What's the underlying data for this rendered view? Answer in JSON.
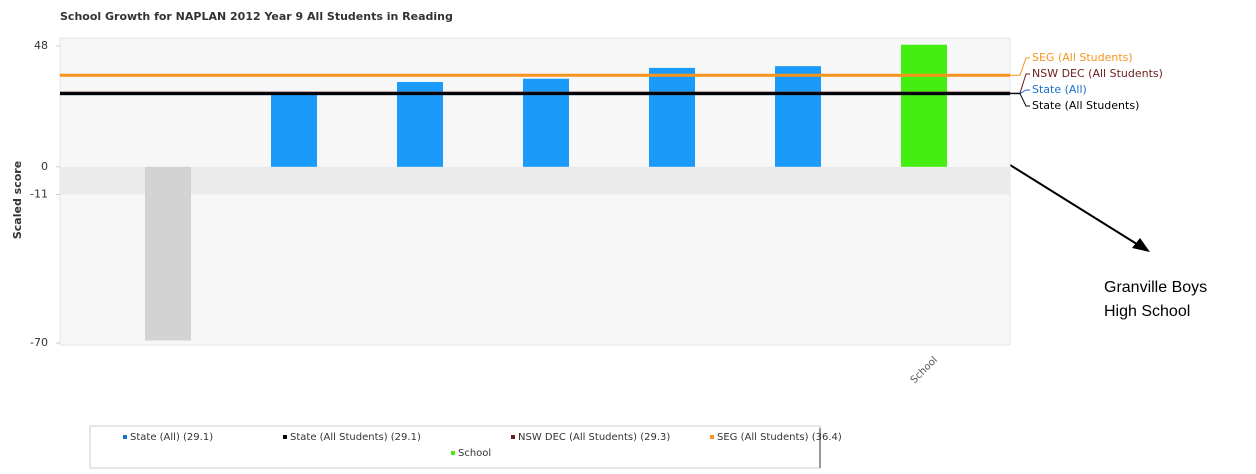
{
  "chart_data": {
    "type": "bar",
    "title": "School Growth for NAPLAN 2012 Year 9 All Students in Reading",
    "y_label": "Scaled score",
    "categories": [
      null,
      null,
      null,
      null,
      null,
      null,
      "School"
    ],
    "values": [
      -69,
      29,
      33.7,
      35,
      39.3,
      40,
      48.5
    ],
    "colors": [
      "#d3d3d3",
      "#1a9bfc",
      "#1a9bfc",
      "#1a9bfc",
      "#1a9bfc",
      "#1a9bfc",
      "#44ee11"
    ],
    "ylim": [
      -70,
      48
    ],
    "yticks": [
      48,
      0,
      -11,
      -70
    ],
    "shaded_band": [
      -11,
      0
    ],
    "reference_lines": [
      {
        "name": "SEG (All Students)",
        "value": 36.4,
        "color": "#f7941d"
      },
      {
        "name": "NSW DEC (All Students)",
        "value": 29.3,
        "color": "#6b1d1d"
      },
      {
        "name": "State (All)",
        "value": 29.1,
        "color": "#1a6fd0"
      },
      {
        "name": "State (All Students)",
        "value": 29.1,
        "color": "#000000"
      }
    ],
    "legend": [
      {
        "label": "State (All) (29.1)",
        "color": "#1a6fd0"
      },
      {
        "label": "State (All Students) (29.1)",
        "color": "#000000"
      },
      {
        "label": "NSW DEC (All Students) (29.3)",
        "color": "#6b1d1d"
      },
      {
        "label": "SEG (All Students) (36.4)",
        "color": "#f7941d"
      },
      {
        "label": "School",
        "color": "#44ee11"
      }
    ],
    "annotation": [
      "Granville Boys",
      "High School"
    ]
  }
}
